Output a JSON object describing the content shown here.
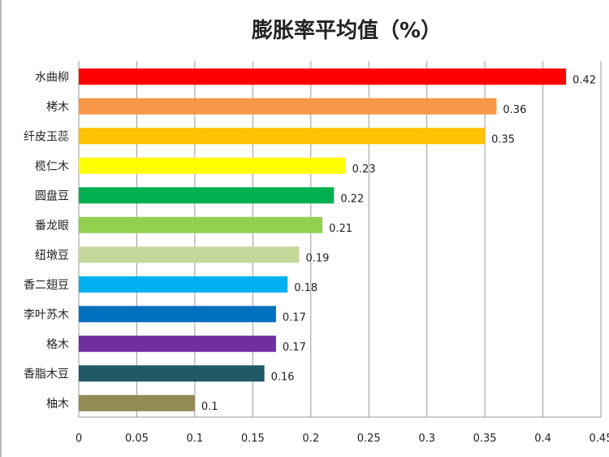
{
  "chart_data": {
    "type": "bar",
    "orientation": "horizontal",
    "title": "膨胀率平均值（%）",
    "categories": [
      "水曲柳",
      "栲木",
      "纤皮玉蕊",
      "榄仁木",
      "圆盘豆",
      "番龙眼",
      "纽墩豆",
      "香二翅豆",
      "李叶苏木",
      "格木",
      "香脂木豆",
      "柚木"
    ],
    "values": [
      0.42,
      0.36,
      0.35,
      0.23,
      0.22,
      0.21,
      0.19,
      0.18,
      0.17,
      0.17,
      0.16,
      0.1
    ],
    "value_labels": [
      "0.42",
      "0.36",
      "0.35",
      "0.23",
      "0.22",
      "0.21",
      "0.19",
      "0.18",
      "0.17",
      "0.17",
      "0.16",
      "0.1"
    ],
    "colors": [
      "#ff0000",
      "#f79646",
      "#ffc000",
      "#ffff00",
      "#00b050",
      "#92d050",
      "#c4d79b",
      "#00b0f0",
      "#0070c0",
      "#7030a0",
      "#215967",
      "#948a54"
    ],
    "xlim": [
      0,
      0.45
    ],
    "xticks": [
      "0",
      "0.05",
      "0.1",
      "0.15",
      "0.2",
      "0.25",
      "0.3",
      "0.35",
      "0.4",
      "0.45"
    ],
    "grid": true,
    "legend": "none"
  }
}
